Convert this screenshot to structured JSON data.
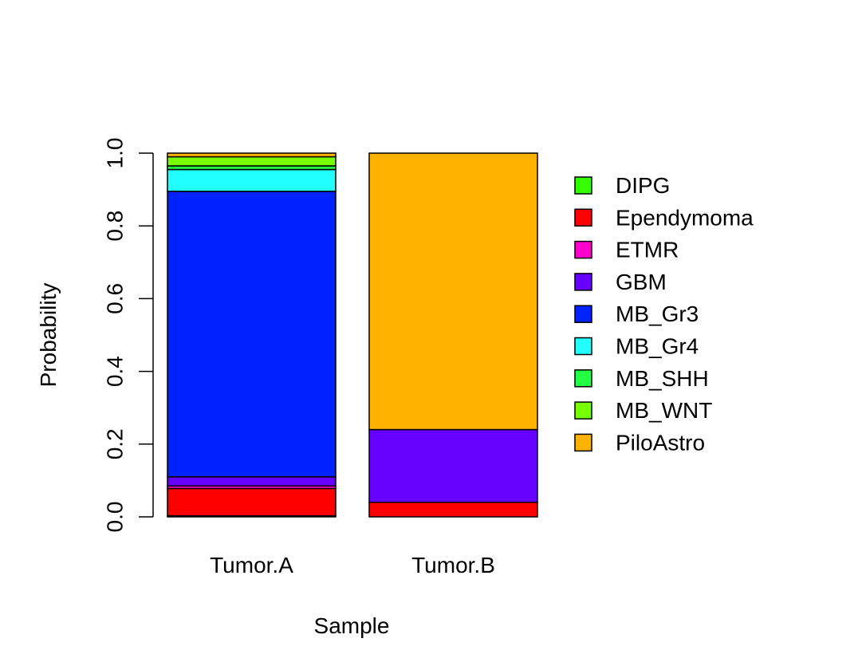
{
  "chart_data": {
    "type": "bar",
    "stacked": true,
    "xlabel": "Sample",
    "ylabel": "Probability",
    "ylim": [
      0,
      1
    ],
    "yticks": [
      "0.0",
      "0.2",
      "0.4",
      "0.6",
      "0.8",
      "1.0"
    ],
    "categories": [
      "Tumor.A",
      "Tumor.B"
    ],
    "legend_position": "right",
    "series": [
      {
        "name": "DIPG",
        "color": "#33FF00",
        "values": [
          0.003,
          0.0
        ]
      },
      {
        "name": "Ependymoma",
        "color": "#FF0000",
        "values": [
          0.075,
          0.04
        ]
      },
      {
        "name": "ETMR",
        "color": "#FF00CC",
        "values": [
          0.007,
          0.0
        ]
      },
      {
        "name": "GBM",
        "color": "#6600FF",
        "values": [
          0.025,
          0.2
        ]
      },
      {
        "name": "MB_Gr3",
        "color": "#0022FF",
        "values": [
          0.785,
          0.0
        ]
      },
      {
        "name": "MB_Gr4",
        "color": "#22FFFF",
        "values": [
          0.06,
          0.0
        ]
      },
      {
        "name": "MB_SHH",
        "color": "#22FF44",
        "values": [
          0.01,
          0.0
        ]
      },
      {
        "name": "MB_WNT",
        "color": "#77FF00",
        "values": [
          0.025,
          0.0
        ]
      },
      {
        "name": "PiloAstro",
        "color": "#FFB300",
        "values": [
          0.01,
          0.76
        ]
      }
    ]
  }
}
